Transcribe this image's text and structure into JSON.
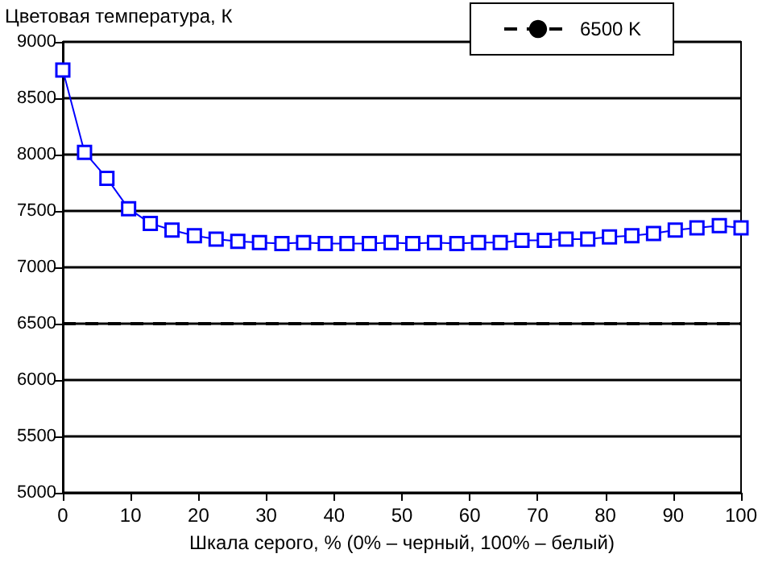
{
  "chart_data": {
    "type": "line",
    "ylabel": "Цветовая температура, К",
    "xlabel": "Шкала серого, % (0% – черный, 100% – белый)",
    "x": [
      0,
      3.2,
      6.5,
      9.7,
      12.9,
      16.1,
      19.4,
      22.6,
      25.8,
      29.0,
      32.3,
      35.5,
      38.7,
      41.9,
      45.2,
      48.4,
      51.6,
      54.8,
      58.1,
      61.3,
      64.5,
      67.7,
      71.0,
      74.2,
      77.4,
      80.6,
      83.9,
      87.1,
      90.3,
      93.5,
      96.8,
      100
    ],
    "series": [
      {
        "color": "#0000ff",
        "values": [
          8750,
          8020,
          7790,
          7520,
          7390,
          7330,
          7280,
          7250,
          7230,
          7220,
          7210,
          7220,
          7210,
          7210,
          7210,
          7220,
          7210,
          7220,
          7210,
          7220,
          7220,
          7240,
          7240,
          7250,
          7250,
          7270,
          7280,
          7300,
          7330,
          7350,
          7370,
          7350
        ]
      }
    ],
    "ref_lines": [
      {
        "axis": "y",
        "value": 6500,
        "label": "6500 K",
        "color": "#000000",
        "line_style": "dashed"
      }
    ],
    "xlim": [
      0,
      100
    ],
    "xticks": [
      0,
      10,
      20,
      30,
      40,
      50,
      60,
      70,
      80,
      90,
      100
    ],
    "ylim": [
      5000,
      9000
    ],
    "yticks": [
      5000,
      5500,
      6000,
      6500,
      7000,
      7500,
      8000,
      8500,
      9000
    ],
    "grid": "y",
    "legend": "top right",
    "marker": "square",
    "line_style": "solid"
  }
}
